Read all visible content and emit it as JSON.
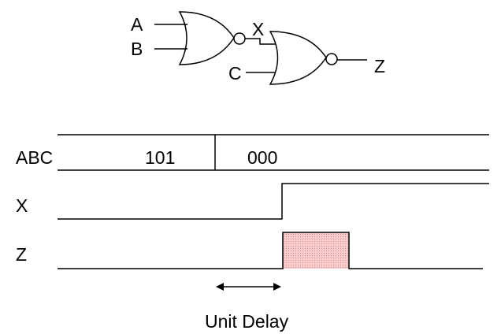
{
  "circuit": {
    "input_a": "A",
    "input_b": "B",
    "input_c": "C",
    "intermediate": "X",
    "output": "Z"
  },
  "timing": {
    "abc_label": "ABC",
    "abc_value_before": "101",
    "abc_value_after": "000",
    "x_label": "X",
    "z_label": "Z",
    "delay_label": "Unit Delay"
  },
  "colors": {
    "line": "#000000",
    "pulse_fill": "#f4c6c6",
    "pulse_stroke": "#000000"
  }
}
